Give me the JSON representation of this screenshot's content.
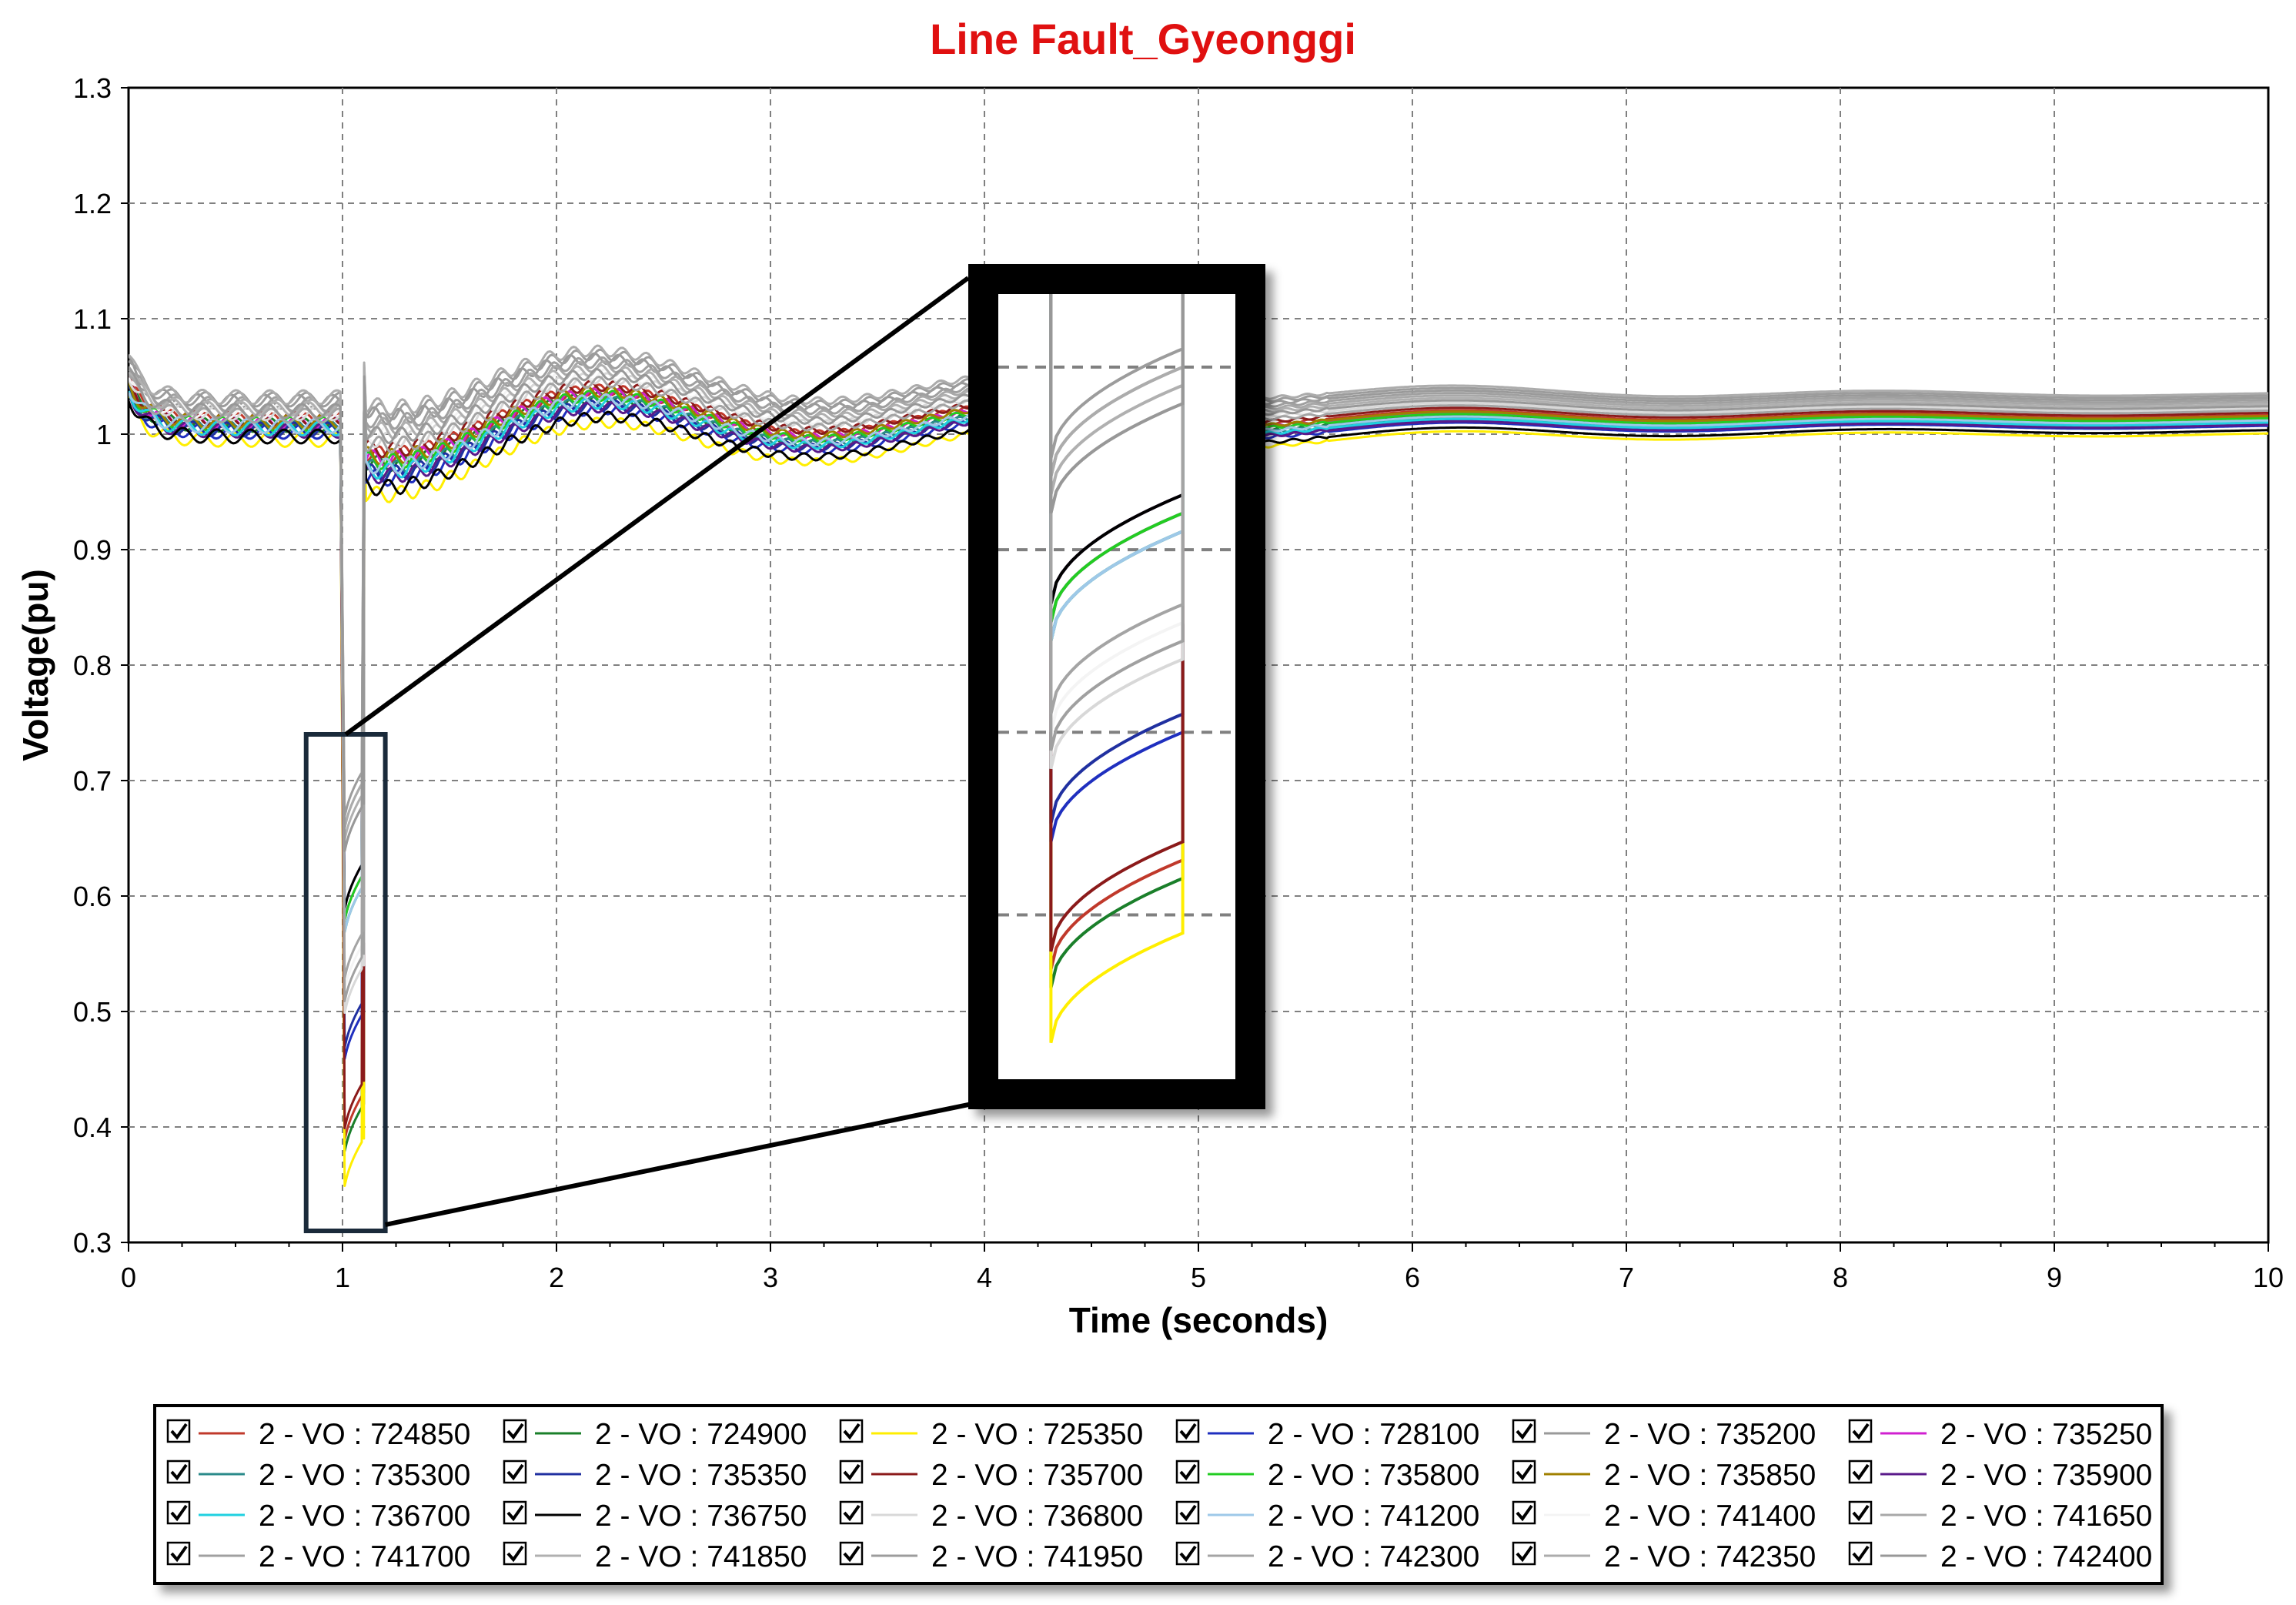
{
  "chart_data": {
    "type": "line",
    "title": "Line Fault_Gyeonggi",
    "title_color": "#e01010",
    "xlabel": "Time (seconds)",
    "ylabel": "Voltage(pu)",
    "xlim": [
      0,
      10
    ],
    "ylim": [
      0.3,
      1.3
    ],
    "x_ticks": [
      "0",
      "1",
      "2",
      "3",
      "4",
      "5",
      "6",
      "7",
      "8",
      "9",
      "10"
    ],
    "y_ticks": [
      "0.3",
      "0.4",
      "0.5",
      "0.6",
      "0.7",
      "0.8",
      "0.9",
      "1",
      "1.1",
      "1.2",
      "1.3"
    ],
    "grid": true,
    "legend_position": "bottom",
    "fault_window": [
      1.0,
      1.1
    ],
    "zoom_inset": {
      "x_range": [
        0.83,
        1.2
      ],
      "y_range": [
        0.31,
        0.74
      ]
    },
    "series": [
      {
        "name": "2 - VO : 724850",
        "color": "#c0392b",
        "offset": 0.012,
        "phase": 0.0,
        "fault_min": 0.37
      },
      {
        "name": "2 - VO : 724900",
        "color": "#1a7f2a",
        "offset": 0.008,
        "phase": 0.3,
        "fault_min": 0.36
      },
      {
        "name": "2 - VO : 725350",
        "color": "#ffee00",
        "offset": -0.005,
        "phase": 0.6,
        "fault_min": 0.33
      },
      {
        "name": "2 - VO : 728100",
        "color": "#1f2fbf",
        "offset": 0.002,
        "phase": 0.9,
        "fault_min": 0.44
      },
      {
        "name": "2 - VO : 735200",
        "color": "#9a9a9a",
        "offset": 0.028,
        "phase": 1.2,
        "fault_min": 0.64
      },
      {
        "name": "2 - VO : 735250",
        "color": "#d020d0",
        "offset": 0.01,
        "phase": 1.5,
        "fault_min": 0.56
      },
      {
        "name": "2 - VO : 735300",
        "color": "#2a8a8a",
        "offset": 0.006,
        "phase": 1.8,
        "fault_min": 0.55
      },
      {
        "name": "2 - VO : 735350",
        "color": "#2030a0",
        "offset": 0.004,
        "phase": 2.1,
        "fault_min": 0.45
      },
      {
        "name": "2 - VO : 735700",
        "color": "#8b1a1a",
        "offset": 0.014,
        "phase": 2.4,
        "fault_min": 0.38
      },
      {
        "name": "2 - VO : 735800",
        "color": "#22cc22",
        "offset": 0.009,
        "phase": 2.7,
        "fault_min": 0.56
      },
      {
        "name": "2 - VO : 735850",
        "color": "#a08000",
        "offset": 0.011,
        "phase": 3.0,
        "fault_min": 0.55
      },
      {
        "name": "2 - VO : 735900",
        "color": "#5a1a8a",
        "offset": 0.003,
        "phase": 3.3,
        "fault_min": 0.57
      },
      {
        "name": "2 - VO : 736700",
        "color": "#20d0e0",
        "offset": 0.005,
        "phase": 3.6,
        "fault_min": 0.55
      },
      {
        "name": "2 - VO : 736750",
        "color": "#000000",
        "offset": -0.002,
        "phase": 3.9,
        "fault_min": 0.57
      },
      {
        "name": "2 - VO : 736800",
        "color": "#d8d8d8",
        "offset": 0.018,
        "phase": 4.2,
        "fault_min": 0.48
      },
      {
        "name": "2 - VO : 741200",
        "color": "#9ec8e8",
        "offset": 0.007,
        "phase": 4.5,
        "fault_min": 0.55
      },
      {
        "name": "2 - VO : 741400",
        "color": "#f4f4f4",
        "offset": 0.02,
        "phase": 4.8,
        "fault_min": 0.5
      },
      {
        "name": "2 - VO : 741650",
        "color": "#a8a8a8",
        "offset": 0.024,
        "phase": 5.1,
        "fault_min": 0.62
      },
      {
        "name": "2 - VO : 741700",
        "color": "#a0a0a0",
        "offset": 0.026,
        "phase": 5.4,
        "fault_min": 0.49
      },
      {
        "name": "2 - VO : 741850",
        "color": "#b0b0b0",
        "offset": 0.022,
        "phase": 5.7,
        "fault_min": 0.63
      },
      {
        "name": "2 - VO : 741950",
        "color": "#9c9c9c",
        "offset": 0.03,
        "phase": 6.0,
        "fault_min": 0.65
      },
      {
        "name": "2 - VO : 742300",
        "color": "#a4a4a4",
        "offset": 0.016,
        "phase": 6.3,
        "fault_min": 0.51
      },
      {
        "name": "2 - VO : 742350",
        "color": "#acacac",
        "offset": 0.032,
        "phase": 6.6,
        "fault_min": 0.64
      },
      {
        "name": "2 - VO : 742400",
        "color": "#989898",
        "offset": 0.02,
        "phase": 6.9,
        "fault_min": 0.62
      }
    ]
  }
}
